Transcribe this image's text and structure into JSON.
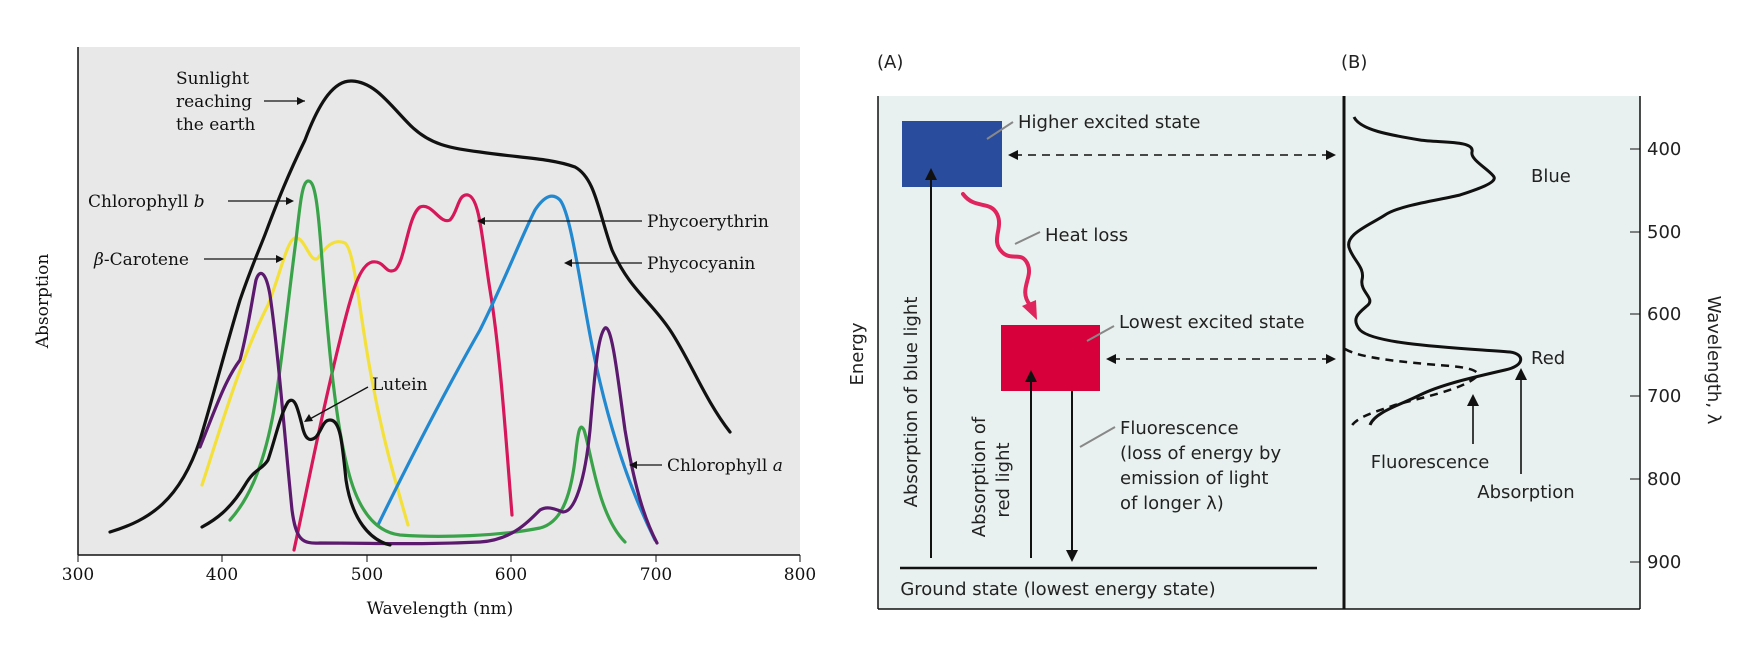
{
  "left_panel": {
    "ylabel": "Absorption",
    "xlabel": "Wavelength (nm)",
    "x_ticks": [
      "300",
      "400",
      "500",
      "600",
      "700",
      "800"
    ],
    "annotations": {
      "sunlight": [
        "Sunlight",
        "reaching",
        "the earth"
      ],
      "chlorophyll_b": "Chlorophyll",
      "chlorophyll_b_italic": "b",
      "beta_carotene_beta": "β",
      "beta_carotene": "-Carotene",
      "lutein": "Lutein",
      "phycoerythrin": "Phycoerythrin",
      "phycocyanin": "Phycocyanin",
      "chlorophyll_a": "Chlorophyll",
      "chlorophyll_a_italic": "a"
    },
    "colors": {
      "background": "#e8e8e8",
      "sunlight": "#111111",
      "chlorophyll_a": "#5b1a6e",
      "chlorophyll_b": "#3aa34a",
      "beta_carotene": "#f4e03a",
      "lutein": "#111111",
      "phycoerythrin": "#d6175a",
      "phycocyanin": "#2288d0"
    }
  },
  "right_panel": {
    "panel_a_label": "(A)",
    "panel_b_label": "(B)",
    "energy_label": "Energy",
    "higher_excited_state": "Higher excited state",
    "heat_loss": "Heat loss",
    "lowest_excited_state": "Lowest excited state",
    "absorption_blue": "Absorption of blue light",
    "absorption_red_1": "Absorption of",
    "absorption_red_2": "red light",
    "fluorescence_lines": [
      "Fluorescence",
      "(loss of energy by",
      "emission of light",
      "of longer λ)"
    ],
    "ground_state": "Ground state (lowest energy state)",
    "blue_label": "Blue",
    "red_label": "Red",
    "fluorescence_label": "Fluorescence",
    "absorption_label": "Absorption",
    "wavelength_axis_label": "Wavelength, λ",
    "wavelength_ticks": [
      "400",
      "500",
      "600",
      "700",
      "800",
      "900"
    ],
    "colors": {
      "background": "#e9f1f0",
      "blue_box": "#2a4c9c",
      "red_box": "#d8003a",
      "heat_arrow": "#e0245e"
    }
  }
}
